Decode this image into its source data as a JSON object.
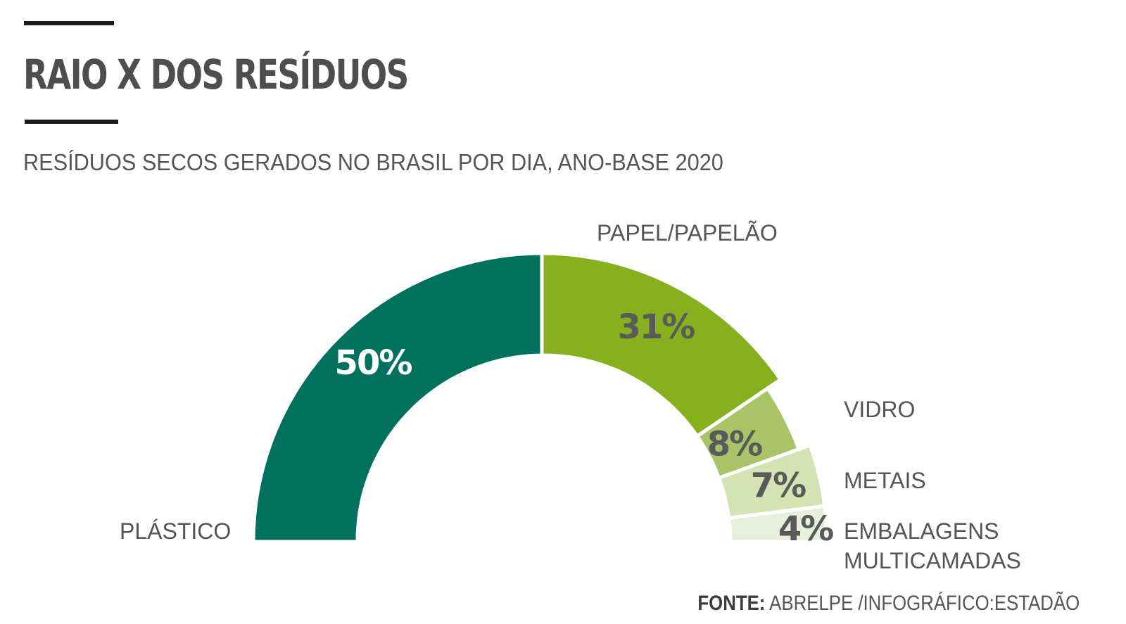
{
  "header": {
    "title": "RAIO X DOS RESÍDUOS",
    "subtitle": "RESÍDUOS SECOS GERADOS NO BRASIL POR DIA, ANO-BASE 2020"
  },
  "chart_data": {
    "type": "pie",
    "variant": "half-donut",
    "title": "RAIO X DOS RESÍDUOS",
    "subtitle": "RESÍDUOS SECOS GERADOS NO BRASIL POR DIA, ANO-BASE 2020",
    "unit": "%",
    "slices": [
      {
        "label": "PLÁSTICO",
        "label_lines": [
          "PLÁSTICO"
        ],
        "value": 50,
        "value_label": "50%",
        "color": "#00705f",
        "value_color": "#ffffff"
      },
      {
        "label": "PAPEL/PAPELÃO",
        "label_lines": [
          "PAPEL/PAPELÃO"
        ],
        "value": 31,
        "value_label": "31%",
        "color": "#86b01e",
        "value_color": "#5a5a5a"
      },
      {
        "label": "VIDRO",
        "label_lines": [
          "VIDRO"
        ],
        "value": 8,
        "value_label": "8%",
        "color": "#a9c467",
        "value_color": "#5a5a5a"
      },
      {
        "label": "METAIS",
        "label_lines": [
          "METAIS"
        ],
        "value": 7,
        "value_label": "7%",
        "color": "#d5e2b3",
        "value_color": "#5a5a5a"
      },
      {
        "label": "EMBALAGENS MULTICAMADAS",
        "label_lines": [
          "EMBALAGENS",
          "MULTICAMADAS"
        ],
        "value": 4,
        "value_label": "4%",
        "color": "#e8efdb",
        "value_color": "#5a5a5a"
      }
    ]
  },
  "footer": {
    "source_key": "FONTE:",
    "source_value": "ABRELPE /INFOGRÁFICO:ESTADÃO"
  }
}
